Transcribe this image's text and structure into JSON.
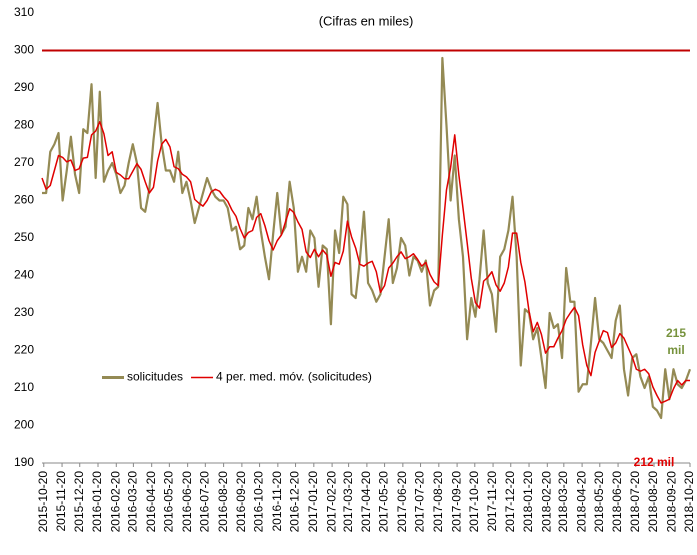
{
  "chart_data": {
    "type": "line",
    "title": "(Cifras en miles)",
    "x": [
      "2015-10-17",
      "2015-10-24",
      "2015-10-31",
      "2015-11-07",
      "2015-11-14",
      "2015-11-21",
      "2015-11-28",
      "2015-12-05",
      "2015-12-12",
      "2015-12-19",
      "2015-12-26",
      "2016-01-02",
      "2016-01-09",
      "2016-01-16",
      "2016-01-23",
      "2016-01-30",
      "2016-02-06",
      "2016-02-13",
      "2016-02-20",
      "2016-02-27",
      "2016-03-05",
      "2016-03-12",
      "2016-03-19",
      "2016-03-26",
      "2016-04-02",
      "2016-04-09",
      "2016-04-16",
      "2016-04-23",
      "2016-04-30",
      "2016-05-07",
      "2016-05-14",
      "2016-05-21",
      "2016-05-28",
      "2016-06-04",
      "2016-06-11",
      "2016-06-18",
      "2016-06-25",
      "2016-07-02",
      "2016-07-09",
      "2016-07-16",
      "2016-07-23",
      "2016-07-30",
      "2016-08-06",
      "2016-08-13",
      "2016-08-20",
      "2016-08-27",
      "2016-09-03",
      "2016-09-10",
      "2016-09-17",
      "2016-09-24",
      "2016-10-01",
      "2016-10-08",
      "2016-10-15",
      "2016-10-22",
      "2016-10-29",
      "2016-11-05",
      "2016-11-12",
      "2016-11-19",
      "2016-11-26",
      "2016-12-03",
      "2016-12-10",
      "2016-12-17",
      "2016-12-24",
      "2016-12-31",
      "2017-01-07",
      "2017-01-14",
      "2017-01-21",
      "2017-01-28",
      "2017-02-04",
      "2017-02-11",
      "2017-02-18",
      "2017-02-25",
      "2017-03-04",
      "2017-03-11",
      "2017-03-18",
      "2017-03-25",
      "2017-04-01",
      "2017-04-08",
      "2017-04-15",
      "2017-04-22",
      "2017-04-29",
      "2017-05-06",
      "2017-05-13",
      "2017-05-20",
      "2017-05-27",
      "2017-06-03",
      "2017-06-10",
      "2017-06-17",
      "2017-06-24",
      "2017-07-01",
      "2017-07-08",
      "2017-07-15",
      "2017-07-22",
      "2017-07-29",
      "2017-08-05",
      "2017-08-12",
      "2017-08-19",
      "2017-08-26",
      "2017-09-02",
      "2017-09-09",
      "2017-09-16",
      "2017-09-23",
      "2017-09-30",
      "2017-10-07",
      "2017-10-14",
      "2017-10-21",
      "2017-10-28",
      "2017-11-04",
      "2017-11-11",
      "2017-11-18",
      "2017-11-25",
      "2017-12-02",
      "2017-12-09",
      "2017-12-16",
      "2017-12-23",
      "2017-12-30",
      "2018-01-06",
      "2018-01-13",
      "2018-01-20",
      "2018-01-27",
      "2018-02-03",
      "2018-02-10",
      "2018-02-17",
      "2018-02-24",
      "2018-03-03",
      "2018-03-10",
      "2018-03-17",
      "2018-03-24",
      "2018-03-31",
      "2018-04-07",
      "2018-04-14",
      "2018-04-21",
      "2018-04-28",
      "2018-05-05",
      "2018-05-12",
      "2018-05-19",
      "2018-05-26",
      "2018-06-02",
      "2018-06-09",
      "2018-06-16",
      "2018-06-23",
      "2018-06-30",
      "2018-07-07",
      "2018-07-14",
      "2018-07-21",
      "2018-07-28",
      "2018-08-04",
      "2018-08-11",
      "2018-08-18",
      "2018-08-25",
      "2018-09-01",
      "2018-09-08",
      "2018-09-15",
      "2018-09-22",
      "2018-09-29",
      "2018-10-06",
      "2018-10-13",
      "2018-10-20"
    ],
    "series": [
      {
        "name": "solicitudes",
        "color": "#948a54",
        "values": [
          262,
          262,
          273,
          275,
          278,
          260,
          268,
          277,
          267,
          262,
          279,
          278,
          291,
          266,
          289,
          265,
          268,
          270,
          267,
          262,
          264,
          270,
          275,
          270,
          258,
          257,
          263,
          276,
          286,
          275,
          268,
          268,
          265,
          273,
          262,
          265,
          260,
          254,
          258,
          262,
          266,
          263,
          261,
          260,
          260,
          258,
          252,
          253,
          247,
          248,
          258,
          255,
          261,
          252,
          245,
          239,
          251,
          262,
          251,
          253,
          265,
          258,
          241,
          245,
          241,
          252,
          250,
          237,
          248,
          247,
          227,
          252,
          246,
          261,
          259,
          235,
          234,
          244,
          257,
          238,
          236,
          233,
          235,
          245,
          255,
          238,
          242,
          250,
          248,
          240,
          245,
          244,
          241,
          244,
          232,
          236,
          237,
          298,
          280,
          260,
          272,
          255,
          245,
          223,
          234,
          229,
          239,
          252,
          238,
          235,
          225,
          245,
          247,
          252,
          261,
          245,
          216,
          231,
          230,
          223,
          226,
          218,
          210,
          230,
          226,
          227,
          218,
          242,
          233,
          233,
          209,
          211,
          211,
          222,
          234,
          223,
          222,
          220,
          218,
          228,
          232,
          215,
          208,
          218,
          219,
          213,
          210,
          213,
          205,
          204,
          202,
          215,
          207,
          215,
          211,
          210,
          212,
          215
        ]
      },
      {
        "name": "4 per. med. móv. (solicitudes)",
        "color": "#e00000",
        "values": [
          266,
          263,
          264,
          268,
          272,
          271.5,
          270.3,
          270.8,
          268,
          268.5,
          271.3,
          271.5,
          277.5,
          278.5,
          281,
          277.8,
          272,
          273,
          267.5,
          266.8,
          265.8,
          265.8,
          267.8,
          269.8,
          268.3,
          265,
          262,
          263.5,
          270.5,
          275,
          276.3,
          274.3,
          269,
          268.5,
          267,
          266.3,
          265,
          260.3,
          259.3,
          258.5,
          260,
          262.3,
          263,
          262.5,
          261,
          259.8,
          257.5,
          255.8,
          252.5,
          250,
          251.5,
          252,
          255.5,
          256.5,
          253.3,
          249.3,
          246.8,
          249.3,
          250.8,
          254.3,
          257.8,
          256.8,
          254.3,
          252.3,
          246.3,
          244.8,
          247,
          245,
          246.8,
          245.5,
          239.8,
          243.5,
          243,
          246.5,
          254.5,
          250.3,
          247.3,
          243,
          242.5,
          243.3,
          243.8,
          241,
          235.5,
          237.3,
          242,
          243.3,
          245,
          246.3,
          244.5,
          245,
          245.8,
          244.3,
          242.5,
          243.5,
          240.3,
          238.3,
          237.3,
          250.8,
          262.8,
          268.8,
          277.5,
          266.8,
          258,
          248.8,
          239.3,
          232.8,
          231.3,
          238.5,
          239.5,
          241,
          237.5,
          235.8,
          238,
          242.3,
          251.3,
          251.3,
          243.5,
          238.3,
          230.5,
          225,
          227.5,
          224.3,
          219.3,
          221,
          221,
          223.3,
          225.3,
          228.3,
          230,
          231.5,
          229.3,
          221.5,
          216,
          213.3,
          219.5,
          222.5,
          225.3,
          224.8,
          220.8,
          222,
          224.5,
          223.3,
          220.8,
          218.3,
          215,
          214.5,
          215,
          213.8,
          210.3,
          208,
          206,
          206.5,
          207,
          209.8,
          212,
          210.8,
          212,
          212
        ]
      }
    ],
    "reference_line": {
      "value": 300,
      "color": "#c00000"
    },
    "annotations": [
      {
        "lines": [
          "215",
          "mil"
        ],
        "color": "#76923c"
      },
      {
        "lines": [
          "212 mil"
        ],
        "color": "#e00000"
      }
    ],
    "xlim": [
      "2015-10-17",
      "2018-10-20"
    ],
    "xticks": [
      "2015-10-20",
      "2015-11-20",
      "2015-12-20",
      "2016-01-20",
      "2016-02-20",
      "2016-03-20",
      "2016-04-20",
      "2016-05-20",
      "2016-06-20",
      "2016-07-20",
      "2016-08-20",
      "2016-09-20",
      "2016-10-20",
      "2016-11-20",
      "2016-12-20",
      "2017-01-20",
      "2017-02-20",
      "2017-03-20",
      "2017-04-20",
      "2017-05-20",
      "2017-06-20",
      "2017-07-20",
      "2017-08-20",
      "2017-09-20",
      "2017-10-20",
      "2017-11-20",
      "2017-12-20",
      "2018-01-20",
      "2018-02-20",
      "2018-03-20",
      "2018-04-20",
      "2018-05-20",
      "2018-06-20",
      "2018-07-20",
      "2018-08-20",
      "2018-09-20",
      "2018-10-20"
    ],
    "ylim": [
      190,
      310
    ],
    "yticks": [
      190,
      200,
      210,
      220,
      230,
      240,
      250,
      260,
      270,
      280,
      290,
      300,
      310
    ],
    "grid": false,
    "legend": "lower-left"
  }
}
